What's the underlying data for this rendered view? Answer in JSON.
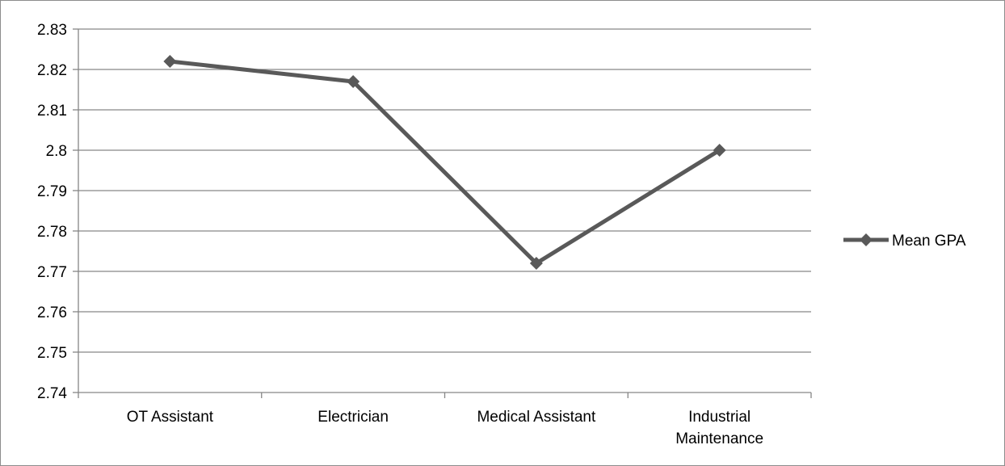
{
  "chart_data": {
    "type": "line",
    "categories": [
      "OT Assistant",
      "Electrician",
      "Medical Assistant",
      "Industrial Maintenance"
    ],
    "category_lines": [
      [
        "OT Assistant"
      ],
      [
        "Electrician"
      ],
      [
        "Medical Assistant"
      ],
      [
        "Industrial",
        "Maintenance"
      ]
    ],
    "series": [
      {
        "name": "Mean GPA",
        "values": [
          2.822,
          2.817,
          2.772,
          2.8
        ]
      }
    ],
    "y_ticks": [
      "2.74",
      "2.75",
      "2.76",
      "2.77",
      "2.78",
      "2.79",
      "2.8",
      "2.81",
      "2.82",
      "2.83"
    ],
    "ylim": [
      2.74,
      2.83
    ],
    "title": "",
    "xlabel": "",
    "ylabel": "",
    "grid": true,
    "legend_position": "right",
    "colors": {
      "series": "#595959",
      "grid": "#868686",
      "axis": "#868686"
    }
  }
}
